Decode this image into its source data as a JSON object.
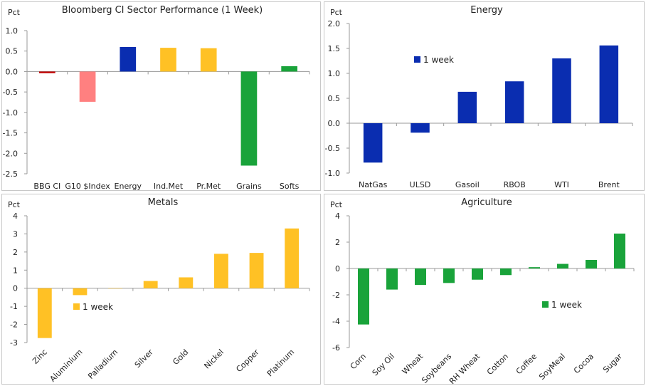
{
  "chart_data": [
    {
      "type": "bar",
      "title": "Bloomberg  CI Sector Performance  (1 Week)",
      "ylabel": "Pct",
      "ylim": [
        -2.5,
        1.0
      ],
      "yticks": [
        "1.0",
        "0.5",
        "0.0",
        "-0.5",
        "-1.0",
        "-1.5",
        "-2.0",
        "-2.5"
      ],
      "categories": [
        "BBG CI",
        "G10 $Index",
        "Energy",
        "Ind.Met",
        "Pr.Met",
        "Grains",
        "Softs"
      ],
      "values": [
        -0.04,
        -0.74,
        0.6,
        0.58,
        0.57,
        -2.3,
        0.13
      ],
      "colors": [
        "#c00000",
        "#ff8080",
        "#0a2db0",
        "#ffc125",
        "#ffc125",
        "#19a33a",
        "#19a33a"
      ],
      "grid": false
    },
    {
      "type": "bar",
      "title": "Energy",
      "ylabel": "Pct",
      "ylim": [
        -1.0,
        2.0
      ],
      "yticks": [
        "2.0",
        "1.5",
        "1.0",
        "0.5",
        "0.0",
        "-0.5",
        "-1.0"
      ],
      "categories": [
        "NatGas",
        "ULSD",
        "Gasoil",
        "RBOB",
        "WTI",
        "Brent"
      ],
      "series": [
        {
          "name": "1 week",
          "values": [
            -0.79,
            -0.19,
            0.63,
            0.84,
            1.3,
            1.56
          ]
        }
      ],
      "color": "#0a2db0",
      "legend": "upper-left",
      "grid": false
    },
    {
      "type": "bar",
      "title": "Metals",
      "ylabel": "Pct",
      "ylim": [
        -3,
        4
      ],
      "yticks": [
        "4",
        "3",
        "2",
        "1",
        "0",
        "-1",
        "-2",
        "-3"
      ],
      "categories": [
        "Zinc",
        "Aluminium",
        "Palladium",
        "Silver",
        "Gold",
        "Nickel",
        "Copper",
        "Platinum"
      ],
      "series": [
        {
          "name": "1 week",
          "values": [
            -2.75,
            -0.38,
            0.0,
            0.4,
            0.6,
            1.9,
            1.95,
            3.3
          ]
        }
      ],
      "color": "#ffc125",
      "legend": "center-left",
      "grid": false
    },
    {
      "type": "bar",
      "title": "Agriculture",
      "ylabel": "Pct",
      "ylim": [
        -6,
        4
      ],
      "yticks": [
        "4",
        "2",
        "0",
        "-2",
        "-4",
        "-6"
      ],
      "categories": [
        "Corn",
        "Soy Oil",
        "Wheat",
        "Soybeans",
        "RH Wheat",
        "Cotton",
        "Coffee",
        "SoyMeal",
        "Cocoa",
        "Sugar"
      ],
      "series": [
        {
          "name": "1 week",
          "values": [
            -4.25,
            -1.6,
            -1.25,
            -1.1,
            -0.85,
            -0.5,
            0.1,
            0.35,
            0.65,
            2.65
          ]
        }
      ],
      "color": "#19a33a",
      "legend": "center-right",
      "grid": false
    }
  ]
}
